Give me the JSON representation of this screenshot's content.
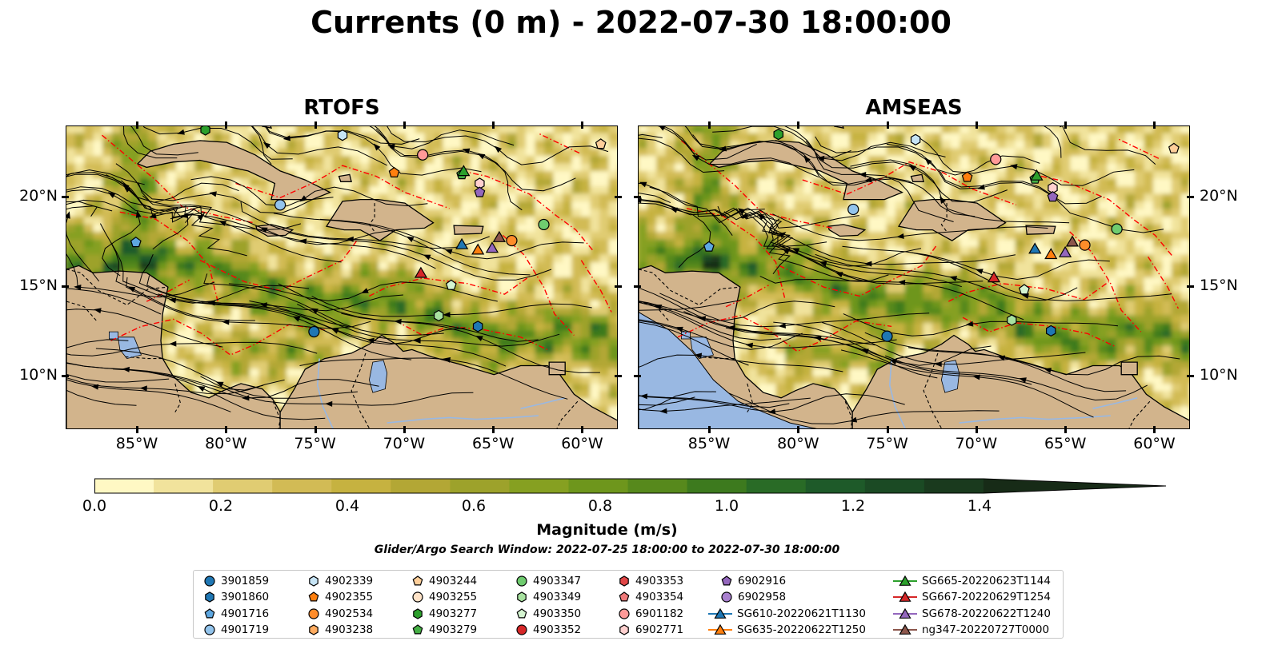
{
  "title": "Currents (0 m) - 2022-07-30 18:00:00",
  "panels": [
    {
      "title": "RTOFS",
      "lat_labels_side": "left"
    },
    {
      "title": "AMSEAS",
      "lat_labels_side": "right"
    }
  ],
  "map_extent": {
    "lon": [
      -89,
      -58
    ],
    "lat": [
      7,
      24
    ]
  },
  "lon_ticks": [
    "85°W",
    "80°W",
    "75°W",
    "70°W",
    "65°W",
    "60°W"
  ],
  "lat_ticks": [
    "20°N",
    "15°N",
    "10°N"
  ],
  "colors": {
    "land": "#d2b48c",
    "water": "#99b8e2",
    "contour": "#ff0000",
    "streamline": "#000000"
  },
  "colorbar": {
    "label": "Magnitude (m/s)",
    "ticks": [
      "0.0",
      "0.2",
      "0.4",
      "0.6",
      "0.8",
      "1.0",
      "1.2",
      "1.4"
    ],
    "range": [
      0,
      1.5
    ],
    "extend": "max",
    "colormap": [
      "#fff8c4",
      "#f1e39c",
      "#e0cc72",
      "#d2bb55",
      "#c6b240",
      "#b3a735",
      "#9da22b",
      "#86a021",
      "#6e961c",
      "#57891c",
      "#3d7a1e",
      "#296b26",
      "#1e5a29",
      "#1b4a24",
      "#1a3a1e",
      "#172b17"
    ]
  },
  "search_window": "Glider/Argo Search Window: 2022-07-25 18:00:00 to 2022-07-30 18:00:00",
  "legend": [
    {
      "label": "3901859",
      "marker": "circle",
      "color": "#1f77b4"
    },
    {
      "label": "3901860",
      "marker": "hexagon",
      "color": "#1f77b4"
    },
    {
      "label": "4901716",
      "marker": "pentagon",
      "color": "#5ea7e0"
    },
    {
      "label": "4901719",
      "marker": "circle",
      "color": "#93c4ec"
    },
    {
      "label": "4902339",
      "marker": "hexagon",
      "color": "#c6e4f5"
    },
    {
      "label": "4902355",
      "marker": "pentagon",
      "color": "#ff7f0e"
    },
    {
      "label": "4902534",
      "marker": "circle",
      "color": "#ff8c2a"
    },
    {
      "label": "4903238",
      "marker": "hexagon",
      "color": "#ffac60"
    },
    {
      "label": "4903244",
      "marker": "pentagon",
      "color": "#ffcf9a"
    },
    {
      "label": "4903255",
      "marker": "circle",
      "color": "#ffe3c8"
    },
    {
      "label": "4903277",
      "marker": "hexagon",
      "color": "#2ca02c"
    },
    {
      "label": "4903279",
      "marker": "pentagon",
      "color": "#45b045"
    },
    {
      "label": "4903347",
      "marker": "circle",
      "color": "#6fcc6f"
    },
    {
      "label": "4903349",
      "marker": "hexagon",
      "color": "#a8e2a0"
    },
    {
      "label": "4903350",
      "marker": "pentagon",
      "color": "#d4f4d0"
    },
    {
      "label": "4903352",
      "marker": "circle",
      "color": "#d62728"
    },
    {
      "label": "4903353",
      "marker": "hexagon",
      "color": "#e04546"
    },
    {
      "label": "4903354",
      "marker": "pentagon",
      "color": "#f07a7a"
    },
    {
      "label": "6901182",
      "marker": "circle",
      "color": "#ff9a98"
    },
    {
      "label": "6902771",
      "marker": "hexagon",
      "color": "#ffd0cf"
    },
    {
      "label": "6902916",
      "marker": "pentagon",
      "color": "#9467bd"
    },
    {
      "label": "6902958",
      "marker": "circle",
      "color": "#a980cf"
    },
    {
      "label": "SG610-20220621T1130",
      "marker": "triangle-line",
      "color": "#1f77b4"
    },
    {
      "label": "SG635-20220622T1250",
      "marker": "triangle-line",
      "color": "#ff7f0e"
    },
    {
      "label": "SG665-20220623T1144",
      "marker": "triangle-line",
      "color": "#2ca02c"
    },
    {
      "label": "SG667-20220629T1254",
      "marker": "triangle-line",
      "color": "#d62728"
    },
    {
      "label": "SG678-20220622T1240",
      "marker": "triangle-line",
      "color": "#9467bd"
    },
    {
      "label": "ng347-20220727T0000",
      "marker": "triangle-line",
      "color": "#8c564b"
    }
  ],
  "platforms": [
    {
      "id": "3901859",
      "lon": -75.1,
      "lat": 12.5
    },
    {
      "id": "3901860",
      "lon": -65.9,
      "lat": 12.8
    },
    {
      "id": "4901716",
      "lon": -85.1,
      "lat": 17.5
    },
    {
      "id": "4901719",
      "lon": -77.0,
      "lat": 19.6
    },
    {
      "id": "4902339",
      "lon": -73.5,
      "lat": 23.5
    },
    {
      "id": "4902355",
      "lon": -70.6,
      "lat": 21.4
    },
    {
      "id": "4902534",
      "lon": -64.0,
      "lat": 17.6
    },
    {
      "id": "4903244",
      "lon": -59.0,
      "lat": 23.0
    },
    {
      "id": "4903277",
      "lon": -81.2,
      "lat": 23.8
    },
    {
      "id": "4903279",
      "lon": -66.8,
      "lat": 21.3
    },
    {
      "id": "4903347",
      "lon": -62.2,
      "lat": 18.5
    },
    {
      "id": "4903349",
      "lon": -68.1,
      "lat": 13.4
    },
    {
      "id": "4903350",
      "lon": -67.4,
      "lat": 15.1
    },
    {
      "id": "6901182",
      "lon": -69.0,
      "lat": 22.4
    },
    {
      "id": "6902771",
      "lon": -65.8,
      "lat": 20.8
    },
    {
      "id": "6902916",
      "lon": -65.8,
      "lat": 20.3
    },
    {
      "id": "SG610-20220621T1130",
      "lon": -66.8,
      "lat": 17.4
    },
    {
      "id": "SG635-20220622T1250",
      "lon": -65.9,
      "lat": 17.1
    },
    {
      "id": "SG665-20220623T1144",
      "lon": -66.7,
      "lat": 21.5
    },
    {
      "id": "SG667-20220629T1254",
      "lon": -69.1,
      "lat": 15.8
    },
    {
      "id": "SG678-20220622T1240",
      "lon": -65.1,
      "lat": 17.2
    },
    {
      "id": "ng347-20220727T0000",
      "lon": -64.7,
      "lat": 17.8
    }
  ]
}
